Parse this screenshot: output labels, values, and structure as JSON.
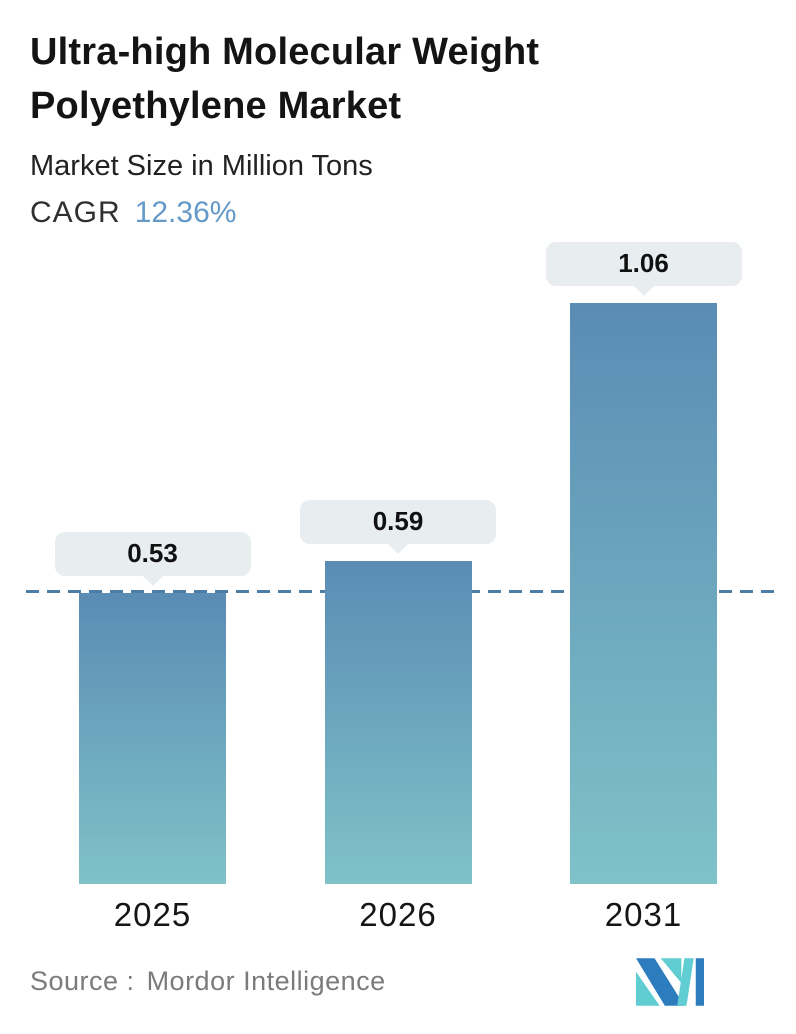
{
  "header": {
    "title_line1": "Ultra-high Molecular Weight",
    "title_line2": "Polyethylene Market",
    "subtitle": "Market Size in Million Tons",
    "cagr_label": "CAGR",
    "cagr_value": "12.36%"
  },
  "chart_data": {
    "type": "bar",
    "title": "Ultra-high Molecular Weight Polyethylene Market",
    "subtitle": "Market Size in Million Tons",
    "cagr": "12.36%",
    "categories": [
      "2025",
      "2026",
      "2031"
    ],
    "values": [
      0.53,
      0.59,
      1.06
    ],
    "value_labels": [
      "0.53",
      "0.59",
      "1.06"
    ],
    "unit": "Million Tons",
    "ylim": [
      0,
      1.06
    ],
    "grid": false,
    "legend": "none",
    "reference_line": {
      "value": 0.53,
      "style": "dashed",
      "color": "#4d7ea8"
    }
  },
  "footer": {
    "source_label": "Source :",
    "source_value": "Mordor Intelligence"
  },
  "colors": {
    "accent_blue": "#6499c8",
    "dash_color": "#4d7ea8",
    "badge_bg": "#e8edf0",
    "bar_gradient_top": "#5a8cb4",
    "bar_gradient_bottom": "#7fc2c8",
    "logo_blue": "#2d7dbe",
    "logo_teal": "#5fcdd2"
  }
}
